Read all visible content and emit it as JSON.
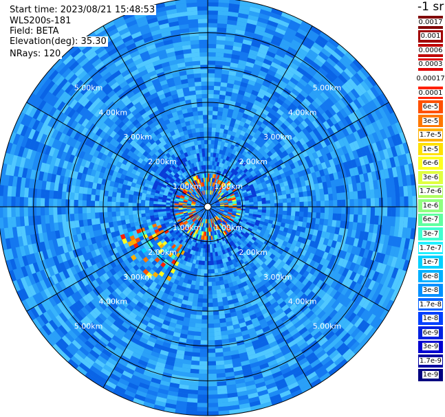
{
  "header": {
    "start_time": "Start time: 2023/08/21 15:48:53",
    "instrument": "WLS200s-181",
    "field": "Field: BETA",
    "elevation": "Elevation(deg): 35.30",
    "nrays": "NRays: 120"
  },
  "colorbar": {
    "title": "-1 sr",
    "labels": [
      "0.0017",
      "0.001",
      "0.0006",
      "0.0003",
      "0.00017",
      "0.0001",
      "6e-5",
      "3e-5",
      "1.7e-5",
      "1e-5",
      "6e-6",
      "3e-6",
      "1.7e-6",
      "1e-6",
      "6e-7",
      "3e-7",
      "1.7e-7",
      "1e-7",
      "6e-8",
      "3e-8",
      "1.7e-8",
      "1e-8",
      "6e-9",
      "3e-9",
      "1.7e-9",
      "1e-9"
    ],
    "colors": [
      "#800000",
      "#a00000",
      "#c00000",
      "#e00000",
      "#ffffff",
      "#ff2000",
      "#ff5000",
      "#ff7800",
      "#ffb000",
      "#ffe000",
      "#ffff20",
      "#e0ff40",
      "#b0ff60",
      "#90ff80",
      "#60ffa0",
      "#40ffd0",
      "#20f0ff",
      "#00d0ff",
      "#00b0ff",
      "#0090ff",
      "#0060ff",
      "#0040ff",
      "#0020e0",
      "#0000d0",
      "#0000a0",
      "#000080"
    ]
  },
  "chart_data": {
    "type": "heatmap",
    "projection": "polar PPI",
    "field": "BETA",
    "n_rays": 120,
    "ring_labels": [
      "1.00km",
      "2.00km",
      "3.00km",
      "4.00km",
      "5.00km"
    ],
    "ring_ranges_km": [
      1,
      2,
      3,
      4,
      5
    ],
    "max_range_km": 6.0,
    "gridline_azimuths_deg": [
      0,
      30,
      60,
      90,
      120,
      150,
      180,
      210,
      240,
      270,
      300,
      330
    ],
    "features": [
      {
        "range_km": [
          0.3,
          1.0
        ],
        "azimuth_deg": [
          0,
          360
        ],
        "beta": "1e-6 to 3e-5"
      },
      {
        "range_km": [
          1.2,
          2.6
        ],
        "azimuth_deg": [
          200,
          250
        ],
        "beta": "1e-6 to 3e-5"
      }
    ],
    "background_beta": "1e-8 to 1e-7",
    "legend_position": "right"
  }
}
